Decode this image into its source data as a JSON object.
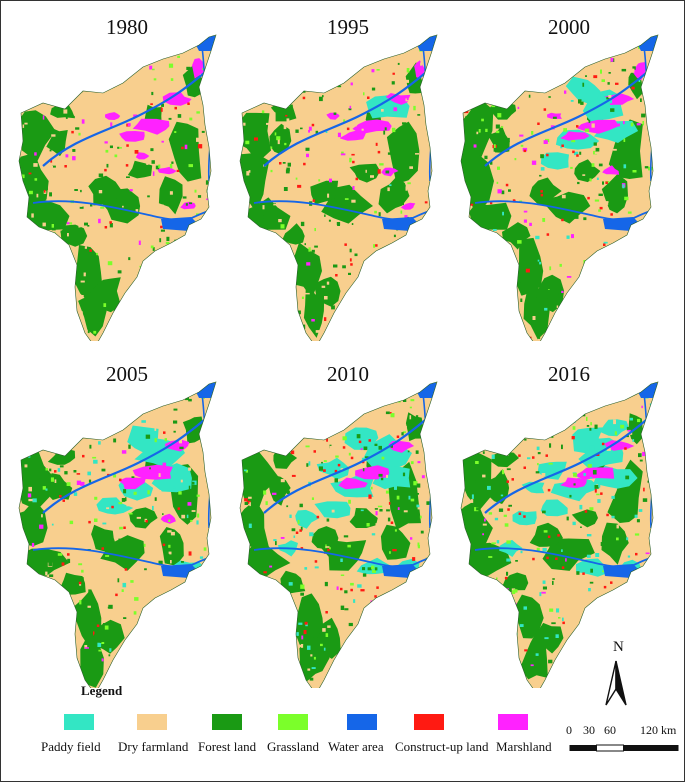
{
  "panels": [
    {
      "year": "1980"
    },
    {
      "year": "1995"
    },
    {
      "year": "2000"
    },
    {
      "year": "2005"
    },
    {
      "year": "2010"
    },
    {
      "year": "2016"
    }
  ],
  "legend": {
    "title": "Legend",
    "items": [
      {
        "label": "Paddy field",
        "color": "#33e6c4"
      },
      {
        "label": "Dry farmland",
        "color": "#f8cf8e"
      },
      {
        "label": "Forest land",
        "color": "#1a9a14"
      },
      {
        "label": "Grassland",
        "color": "#7bff2a"
      },
      {
        "label": "Water area",
        "color": "#1566e8"
      },
      {
        "label": "Construct-up land",
        "color": "#ff1a12"
      },
      {
        "label": "Marshland",
        "color": "#ff22ff"
      }
    ]
  },
  "north_arrow": {
    "label": "N"
  },
  "scale_bar": {
    "ticks": [
      "0",
      "30",
      "60",
      "120 km"
    ]
  }
}
